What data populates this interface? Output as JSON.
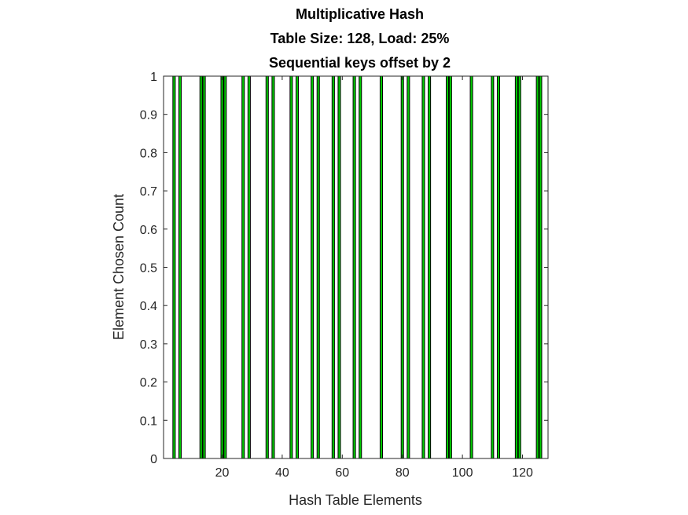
{
  "chart_data": {
    "type": "bar",
    "title": [
      "Multiplicative Hash",
      "Table Size: 128, Load: 25%",
      "Sequential keys offset by 2"
    ],
    "xlabel": "Hash Table Elements",
    "ylabel": "Element Chosen Count",
    "xlim": [
      1,
      128
    ],
    "ylim": [
      0,
      1
    ],
    "xticks": [
      20,
      40,
      60,
      80,
      100,
      120
    ],
    "yticks": [
      0,
      0.1,
      0.2,
      0.3,
      0.4,
      0.5,
      0.6,
      0.7,
      0.8,
      0.9,
      1
    ],
    "ytick_labels": [
      "0",
      "0.1",
      "0.2",
      "0.3",
      "0.4",
      "0.5",
      "0.6",
      "0.7",
      "0.8",
      "0.9",
      "1"
    ],
    "grid": false,
    "bar_color": "#00cc00",
    "bar_edge_color": "#000000",
    "x": [
      4,
      6,
      13,
      14,
      20,
      21,
      27,
      29,
      35,
      37,
      43,
      45,
      50,
      52,
      57,
      59,
      64,
      66,
      73,
      80,
      82,
      87,
      89,
      95,
      96,
      103,
      110,
      112,
      118,
      119,
      125,
      126
    ],
    "values": [
      1,
      1,
      1,
      1,
      1,
      1,
      1,
      1,
      1,
      1,
      1,
      1,
      1,
      1,
      1,
      1,
      1,
      1,
      1,
      1,
      1,
      1,
      1,
      1,
      1,
      1,
      1,
      1,
      1,
      1,
      1,
      1
    ]
  }
}
